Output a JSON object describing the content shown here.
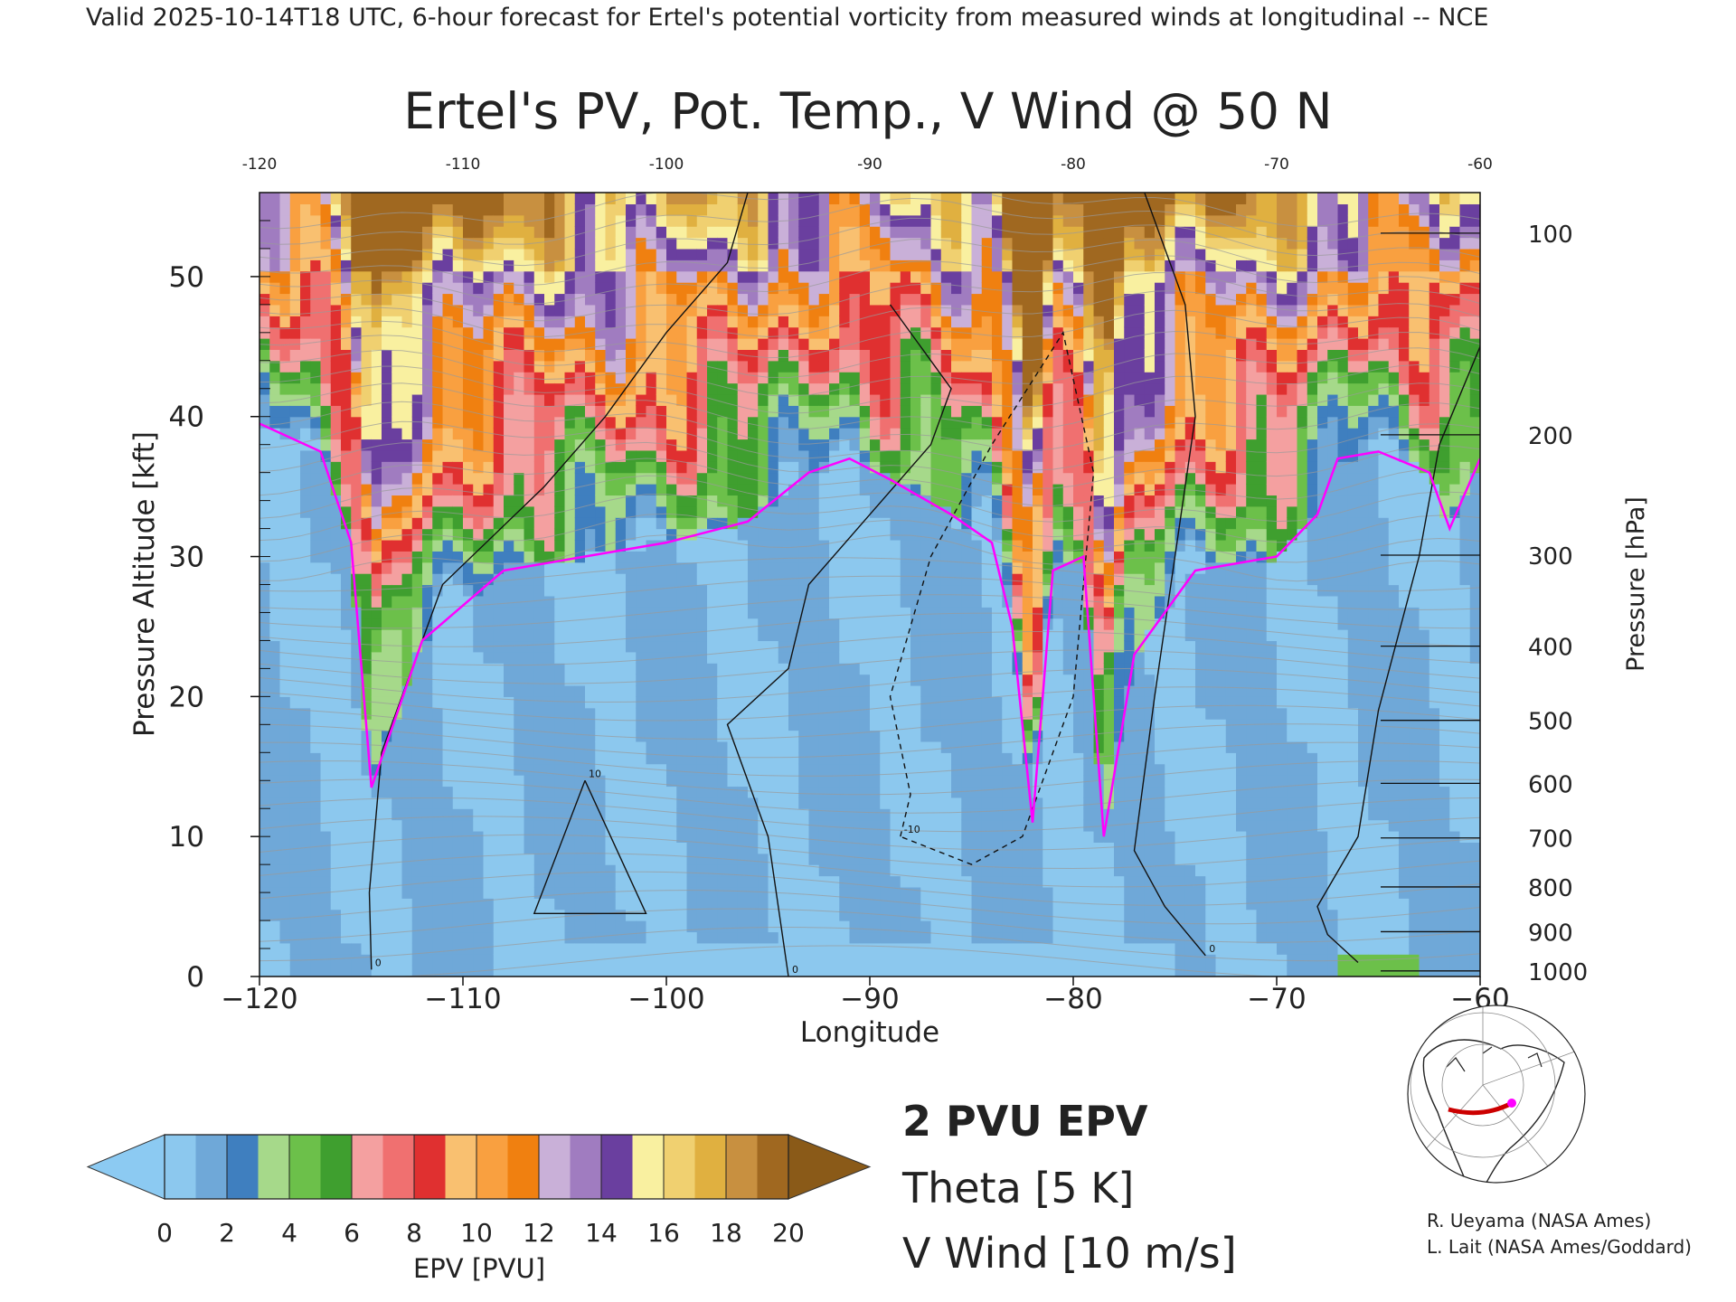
{
  "header": {
    "valid_line": "Valid 2025-10-14T18 UTC, 6-hour forecast for Ertel's potential vorticity from measured winds at longitudinal -- NCE"
  },
  "chart_data": {
    "type": "heatmap",
    "title": "Ertel's PV, Pot. Temp., V Wind @ 50 N",
    "xlabel": "Longitude",
    "ylabel_left": "Pressure Altitude [kft]",
    "ylabel_right": "Pressure [hPa]",
    "xlim": [
      -120,
      -60
    ],
    "ylim": [
      0,
      56
    ],
    "x_ticks_bottom": [
      "−120",
      "−110",
      "−100",
      "−90",
      "−80",
      "−70",
      "−60"
    ],
    "x_ticks_top": [
      "-120",
      "-110",
      "-100",
      "-90",
      "-80",
      "-70",
      "-60"
    ],
    "y_ticks_left": [
      "0",
      "10",
      "20",
      "30",
      "40",
      "50"
    ],
    "pressure_ticks": [
      {
        "label": "100",
        "kft": 53.1
      },
      {
        "label": "200",
        "kft": 38.7
      },
      {
        "label": "300",
        "kft": 30.1
      },
      {
        "label": "400",
        "kft": 23.6
      },
      {
        "label": "500",
        "kft": 18.3
      },
      {
        "label": "600",
        "kft": 13.8
      },
      {
        "label": "700",
        "kft": 9.9
      },
      {
        "label": "800",
        "kft": 6.4
      },
      {
        "label": "900",
        "kft": 3.2
      },
      {
        "label": "1000",
        "kft": 0.4
      }
    ],
    "colorbar": {
      "label": "EPV [PVU]",
      "ticks": [
        "0",
        "2",
        "4",
        "6",
        "8",
        "10",
        "12",
        "14",
        "16",
        "18",
        "20"
      ],
      "colors": [
        "#8cc8ee",
        "#6fa8d8",
        "#3f7fbf",
        "#a6d98a",
        "#6cc04a",
        "#3f9f2f",
        "#f4a0a0",
        "#f07070",
        "#e03030",
        "#f9c070",
        "#f9a040",
        "#f08010",
        "#c9b0d8",
        "#a07cc0",
        "#6a3f9f",
        "#f9f0a0",
        "#f0d070",
        "#e0b040",
        "#c89040",
        "#a06820"
      ]
    },
    "tropopause_2pvu": [
      {
        "lon": -120,
        "kft": 39.5
      },
      {
        "lon": -117,
        "kft": 37.5
      },
      {
        "lon": -115.5,
        "kft": 31
      },
      {
        "lon": -114.5,
        "kft": 13.5
      },
      {
        "lon": -112,
        "kft": 24
      },
      {
        "lon": -110,
        "kft": 26.5
      },
      {
        "lon": -108,
        "kft": 29
      },
      {
        "lon": -104,
        "kft": 30
      },
      {
        "lon": -100,
        "kft": 31
      },
      {
        "lon": -96,
        "kft": 32.5
      },
      {
        "lon": -93,
        "kft": 36
      },
      {
        "lon": -91,
        "kft": 37
      },
      {
        "lon": -89,
        "kft": 35.5
      },
      {
        "lon": -86,
        "kft": 33
      },
      {
        "lon": -84,
        "kft": 31
      },
      {
        "lon": -83,
        "kft": 25
      },
      {
        "lon": -82,
        "kft": 11
      },
      {
        "lon": -81,
        "kft": 29
      },
      {
        "lon": -79.5,
        "kft": 30
      },
      {
        "lon": -78.5,
        "kft": 10
      },
      {
        "lon": -77,
        "kft": 23
      },
      {
        "lon": -74,
        "kft": 29
      },
      {
        "lon": -70,
        "kft": 30
      },
      {
        "lon": -68,
        "kft": 33
      },
      {
        "lon": -67,
        "kft": 37
      },
      {
        "lon": -65,
        "kft": 37.5
      },
      {
        "lon": -62.5,
        "kft": 36
      },
      {
        "lon": -61.5,
        "kft": 32
      },
      {
        "lon": -60,
        "kft": 37
      }
    ],
    "v_wind_contours": [
      {
        "label": "0",
        "points": [
          [
            -114.5,
            0.5
          ],
          [
            -114.6,
            6
          ],
          [
            -114,
            16
          ],
          [
            -111,
            28
          ],
          [
            -106,
            35
          ],
          [
            -103,
            40
          ],
          [
            -100,
            46
          ],
          [
            -97,
            51
          ],
          [
            -96,
            56
          ]
        ]
      },
      {
        "label": "0",
        "points": [
          [
            -94,
            0
          ],
          [
            -95,
            10
          ],
          [
            -97,
            18
          ],
          [
            -94,
            22
          ],
          [
            -93,
            28
          ],
          [
            -90,
            33
          ],
          [
            -87,
            38
          ],
          [
            -86,
            42
          ],
          [
            -89,
            48
          ]
        ]
      },
      {
        "label": "0",
        "points": [
          [
            -73.5,
            1.5
          ],
          [
            -75.5,
            5
          ],
          [
            -77,
            9
          ],
          [
            -76,
            20
          ],
          [
            -75,
            30
          ],
          [
            -74,
            40
          ],
          [
            -74.5,
            48
          ],
          [
            -76.5,
            56
          ]
        ]
      },
      {
        "label": "10",
        "points": [
          [
            -104,
            14
          ],
          [
            -106.5,
            4.5
          ],
          [
            -101,
            4.5
          ],
          [
            -104,
            14
          ]
        ]
      },
      {
        "label": "-10",
        "points": [
          [
            -88.5,
            10
          ],
          [
            -88,
            13
          ],
          [
            -89,
            20
          ],
          [
            -87,
            30
          ],
          [
            -84,
            38
          ],
          [
            -80.5,
            46
          ],
          [
            -79,
            36
          ],
          [
            -80,
            20
          ],
          [
            -82.5,
            10
          ],
          [
            -85,
            8
          ],
          [
            -88.5,
            10
          ]
        ]
      },
      {
        "label": "10",
        "points": [
          [
            -60,
            45
          ],
          [
            -62,
            38
          ],
          [
            -63,
            30
          ],
          [
            -65,
            19
          ],
          [
            -66,
            10
          ],
          [
            -68,
            5
          ],
          [
            -67.5,
            3
          ],
          [
            -66,
            1
          ]
        ]
      }
    ],
    "theta_levels_K": [
      "280",
      "290",
      "300",
      "310",
      "320",
      "330",
      "340",
      "350",
      "360",
      "370",
      "380",
      "390",
      "400",
      "410",
      "420"
    ],
    "legend": [
      {
        "text": "2 PVU EPV",
        "color": "#ff00ff"
      },
      {
        "text": "Theta [5 K]",
        "color": "#aaaaaa"
      },
      {
        "text": "V Wind [10 m/s]",
        "color": "#111111"
      }
    ],
    "map_inset": {
      "latitude": "50 N",
      "section_color": "#cc0000"
    },
    "credits": [
      "R. Ueyama (NASA Ames)",
      "L. Lait (NASA Ames/Goddard)"
    ]
  }
}
